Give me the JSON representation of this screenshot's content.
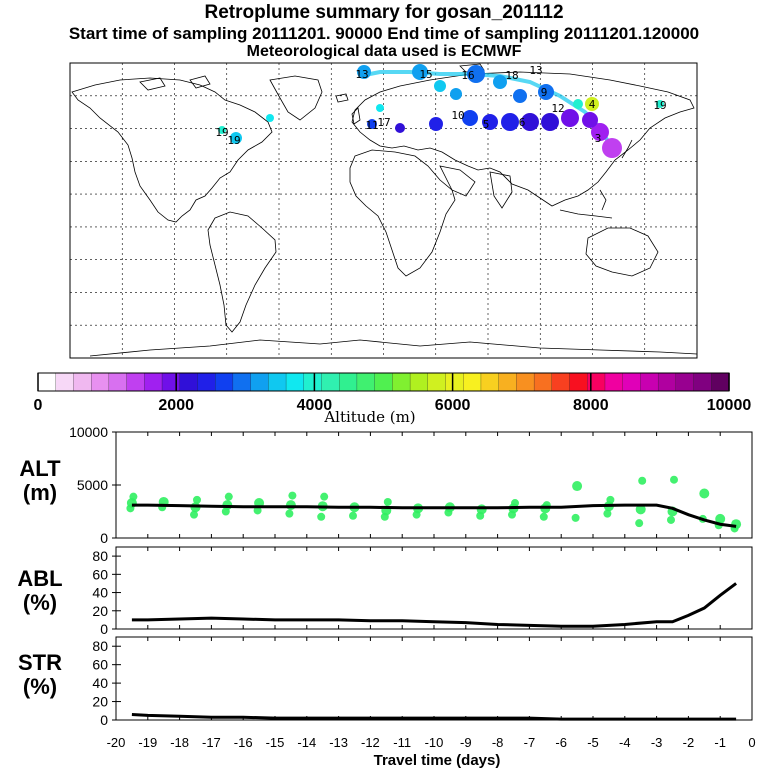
{
  "header": {
    "title": "Retroplume summary for gosan_201112",
    "sampling": "Start time of sampling 20111201. 90000     End time of sampling 20111201.120000",
    "met": "Meteorological data used is ECMWF"
  },
  "colorbar": {
    "label": "Altitude (m)",
    "ticks": [
      "0",
      "2000",
      "4000",
      "6000",
      "8000",
      "10000"
    ],
    "colors": [
      "#ffffff",
      "#f7d8f7",
      "#f0b8f0",
      "#e890f0",
      "#d870f0",
      "#c040f0",
      "#a020f0",
      "#7010e8",
      "#3010d8",
      "#2020e8",
      "#1040f0",
      "#1070f0",
      "#10a0f0",
      "#10c8f0",
      "#10e8f0",
      "#20f0d0",
      "#30f0b0",
      "#30f090",
      "#40f070",
      "#50f050",
      "#80f030",
      "#b0f020",
      "#d0f020",
      "#e8f020",
      "#f8f020",
      "#f8d020",
      "#f8b020",
      "#f89020",
      "#f87020",
      "#f84020",
      "#f81020",
      "#f80060",
      "#f000a0",
      "#e000b8",
      "#c800b0",
      "#b000a0",
      "#980090",
      "#800080",
      "#600060"
    ]
  },
  "map": {
    "labels": [
      {
        "text": "13",
        "color": "#10a0f0"
      },
      {
        "text": "15",
        "color": "#10a0f0"
      },
      {
        "text": "16",
        "color": "#1070f0"
      },
      {
        "text": "18",
        "color": "#1070f0"
      },
      {
        "text": "13",
        "color": "#10c8f0"
      },
      {
        "text": "9",
        "color": "#1070f0"
      },
      {
        "text": "12",
        "color": "#10a0f0"
      },
      {
        "text": "4",
        "color": "#d0f020"
      },
      {
        "text": "10",
        "color": "#1040f0"
      },
      {
        "text": "5",
        "color": "#3010d8"
      },
      {
        "text": "6",
        "color": "#7010e8"
      },
      {
        "text": "3",
        "color": "#a020f0"
      },
      {
        "text": "19",
        "color": "#10e8f0"
      },
      {
        "text": "19",
        "color": "#20f0d0"
      },
      {
        "text": "19",
        "color": "#10c8f0"
      },
      {
        "text": "17",
        "color": "#1070f0"
      },
      {
        "text": "11",
        "color": "#3010d8"
      }
    ]
  },
  "panels": {
    "alt": {
      "label1": "ALT",
      "label2": "(m)"
    },
    "abl": {
      "label1": "ABL",
      "label2": "(%)"
    },
    "str": {
      "label1": "STR",
      "label2": "(%)"
    }
  },
  "xaxis_label": "Travel time (days)",
  "chart_data": [
    {
      "type": "line",
      "title": "ALT (m)",
      "ylabel": "ALT (m)",
      "xlabel": "Travel time (days)",
      "xlim": [
        -20,
        0
      ],
      "ylim": [
        0,
        10000
      ],
      "yticks": [
        "0",
        "5000",
        "10000"
      ],
      "xticks": [
        "-20",
        "-19",
        "-18",
        "-17",
        "-16",
        "-15",
        "-14",
        "-13",
        "-12",
        "-11",
        "-10",
        "-9",
        "-8",
        "-7",
        "-6",
        "-5",
        "-4",
        "-3",
        "-2",
        "-1",
        "0"
      ],
      "mean_line": {
        "x": [
          -19.5,
          -19,
          -18,
          -17,
          -16,
          -15,
          -14,
          -13,
          -12,
          -11,
          -10,
          -9,
          -8,
          -7,
          -6,
          -5,
          -4,
          -3,
          -2.5,
          -2,
          -1.5,
          -1,
          -0.5
        ],
        "y": [
          3100,
          3100,
          3050,
          3000,
          2950,
          2950,
          2950,
          2900,
          2900,
          2850,
          2850,
          2850,
          2850,
          2900,
          2900,
          3050,
          3100,
          3100,
          2800,
          2200,
          1700,
          1300,
          1100
        ]
      },
      "scatter": [
        {
          "x": -19.5,
          "y": [
            2800,
            3300,
            3900
          ]
        },
        {
          "x": -18.5,
          "y": [
            2900,
            3400
          ]
        },
        {
          "x": -17.5,
          "y": [
            2200,
            2900,
            3600
          ]
        },
        {
          "x": -16.5,
          "y": [
            2500,
            3100,
            3900
          ]
        },
        {
          "x": -15.5,
          "y": [
            2600,
            3300
          ]
        },
        {
          "x": -14.5,
          "y": [
            2300,
            3100,
            4000
          ]
        },
        {
          "x": -13.5,
          "y": [
            2000,
            3000,
            3900
          ]
        },
        {
          "x": -12.5,
          "y": [
            2100,
            2900
          ]
        },
        {
          "x": -11.5,
          "y": [
            2000,
            2600,
            3400
          ]
        },
        {
          "x": -10.5,
          "y": [
            2200,
            2800
          ]
        },
        {
          "x": -9.5,
          "y": [
            2400,
            2900
          ]
        },
        {
          "x": -8.5,
          "y": [
            2100,
            2700
          ]
        },
        {
          "x": -7.5,
          "y": [
            2200,
            2800,
            3300
          ]
        },
        {
          "x": -6.5,
          "y": [
            2000,
            2800,
            3100
          ]
        },
        {
          "x": -5.5,
          "y": [
            1900,
            4900
          ]
        },
        {
          "x": -4.5,
          "y": [
            2300,
            3000,
            3600
          ]
        },
        {
          "x": -3.5,
          "y": [
            1400,
            2700,
            5400
          ]
        },
        {
          "x": -2.5,
          "y": [
            1700,
            2500,
            5500
          ]
        },
        {
          "x": -1.5,
          "y": [
            1800,
            4200
          ]
        },
        {
          "x": -1.0,
          "y": [
            1200,
            1800
          ]
        },
        {
          "x": -0.5,
          "y": [
            900,
            1300
          ]
        }
      ]
    },
    {
      "type": "line",
      "title": "ABL (%)",
      "ylabel": "ABL (%)",
      "xlim": [
        -20,
        0
      ],
      "ylim": [
        0,
        90
      ],
      "yticks": [
        "0",
        "20",
        "40",
        "60",
        "80"
      ],
      "x": [
        -19.5,
        -19,
        -18,
        -17,
        -16,
        -15,
        -14,
        -13,
        -12,
        -11,
        -10,
        -9,
        -8,
        -7,
        -6,
        -5,
        -4,
        -3,
        -2.5,
        -2,
        -1.5,
        -1,
        -0.5
      ],
      "y": [
        10,
        10,
        11,
        12,
        11,
        10,
        10,
        10,
        9,
        9,
        8,
        7,
        5,
        4,
        3,
        3,
        5,
        8,
        8,
        15,
        23,
        37,
        50
      ]
    },
    {
      "type": "line",
      "title": "STR (%)",
      "ylabel": "STR (%)",
      "xlim": [
        -20,
        0
      ],
      "ylim": [
        0,
        90
      ],
      "yticks": [
        "0",
        "20",
        "40",
        "60",
        "80"
      ],
      "x": [
        -19.5,
        -19,
        -18,
        -17,
        -16,
        -15,
        -14,
        -13,
        -12,
        -11,
        -10,
        -9,
        -8,
        -7,
        -6,
        -5,
        -4,
        -3,
        -2,
        -1,
        -0.5
      ],
      "y": [
        6,
        5,
        4,
        3,
        3,
        2,
        2,
        2,
        2,
        2,
        2,
        2,
        2,
        2,
        1,
        1,
        1,
        1,
        1,
        1,
        1
      ]
    }
  ]
}
